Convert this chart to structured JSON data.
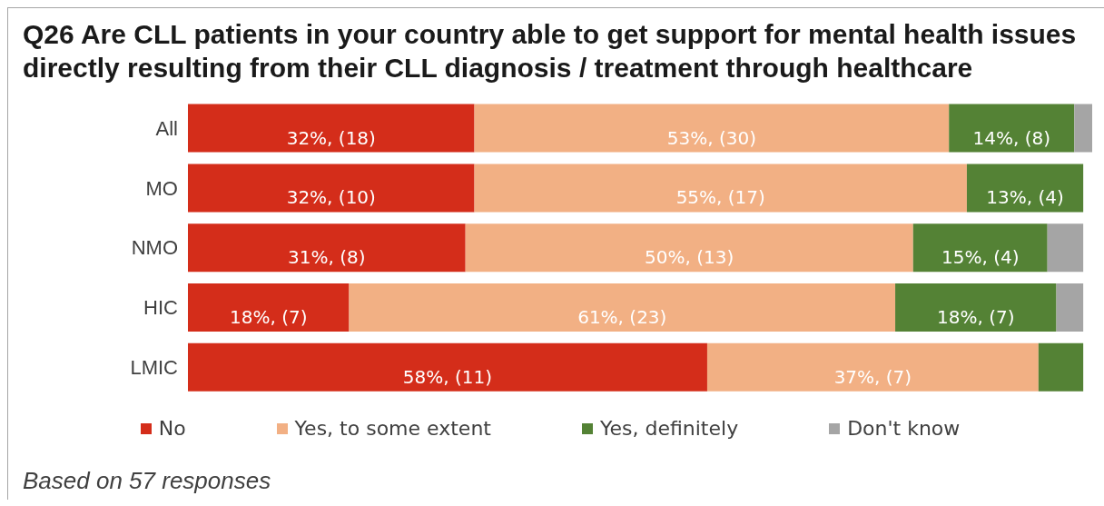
{
  "chart_data": {
    "type": "bar",
    "orientation": "horizontal",
    "stacked": true,
    "title": "Q26 Are CLL patients in your country able to get support for mental health issues directly resulting from their CLL diagnosis / treatment through healthcare",
    "categories": [
      "All",
      "MO",
      "NMO",
      "HIC",
      "LMIC"
    ],
    "series": [
      {
        "name": "No",
        "color": "#d42d1a",
        "values": [
          32,
          32,
          31,
          18,
          58
        ],
        "value_labels": [
          "32%, (18)",
          "32%, (10)",
          "31%, (8)",
          "18%, (7)",
          "58%, (11)"
        ]
      },
      {
        "name": "Yes, to some extent",
        "color": "#f2b084",
        "values": [
          53,
          55,
          50,
          61,
          37
        ],
        "value_labels": [
          "53%, (30)",
          "55%, (17)",
          "50%, (13)",
          "61%, (23)",
          "37%, (7)"
        ]
      },
      {
        "name": "Yes, definitely",
        "color": "#548235",
        "values": [
          14,
          13,
          15,
          18,
          5
        ],
        "value_labels": [
          "14%, (8)",
          "13%, (4)",
          "15%, (4)",
          "18%, (7)",
          null
        ]
      },
      {
        "name": "Don't know",
        "color": "#a5a5a5",
        "values": [
          2,
          null,
          4,
          3,
          null
        ]
      }
    ],
    "legend": "bottom",
    "tick_labels": "y",
    "annotations": [
      "Based on 57 responses"
    ]
  }
}
